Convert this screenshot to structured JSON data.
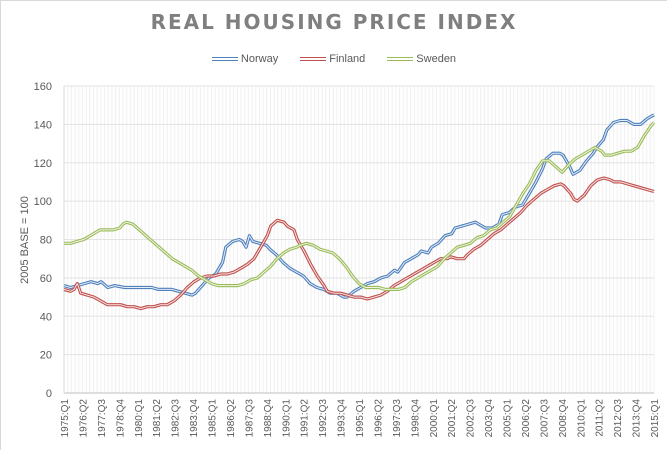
{
  "chart_data": {
    "type": "line",
    "title": "REAL HOUSING PRICE INDEX",
    "xlabel": "",
    "ylabel": "2005 BASE = 100",
    "ylim": [
      0,
      160
    ],
    "yticks": [
      0,
      20,
      40,
      60,
      80,
      100,
      120,
      140,
      160
    ],
    "grid": true,
    "legend_position": "top",
    "x_start": "1975:Q1",
    "x_end": "2015:Q1",
    "x_tick_every": 5,
    "x_tick_labels": [
      "1975:Q1",
      "1976:Q2",
      "1977:Q3",
      "1978:Q4",
      "1980:Q1",
      "1981:Q2",
      "1982:Q3",
      "1983:Q4",
      "1985:Q1",
      "1986:Q2",
      "1987:Q3",
      "1988:Q4",
      "1990:Q1",
      "1991:Q2",
      "1992:Q3",
      "1993:Q4",
      "1995:Q1",
      "1996:Q2",
      "1997:Q3",
      "1998:Q4",
      "2000:Q1",
      "2001:Q2",
      "2002:Q3",
      "2003:Q4",
      "2005:Q1",
      "2006:Q2",
      "2007:Q3",
      "2008:Q4",
      "2010:Q1",
      "2011:Q2",
      "2012:Q3",
      "2013:Q4",
      "2015:Q1"
    ],
    "series": [
      {
        "name": "Norway",
        "color": "#4f81bd",
        "keypoints": [
          [
            0,
            56
          ],
          [
            2,
            55
          ],
          [
            4,
            56
          ],
          [
            6,
            57
          ],
          [
            8,
            58
          ],
          [
            10,
            57
          ],
          [
            11,
            58
          ],
          [
            13,
            55
          ],
          [
            15,
            56
          ],
          [
            18,
            55
          ],
          [
            22,
            55
          ],
          [
            26,
            55
          ],
          [
            28,
            54
          ],
          [
            32,
            54
          ],
          [
            34,
            53
          ],
          [
            36,
            52
          ],
          [
            38,
            51
          ],
          [
            39,
            52
          ],
          [
            41,
            56
          ],
          [
            43,
            60
          ],
          [
            45,
            62
          ],
          [
            47,
            68
          ],
          [
            48,
            76
          ],
          [
            50,
            79
          ],
          [
            52,
            80
          ],
          [
            53,
            79
          ],
          [
            54,
            76
          ],
          [
            55,
            82
          ],
          [
            56,
            79
          ],
          [
            58,
            78
          ],
          [
            60,
            77
          ],
          [
            61,
            75
          ],
          [
            63,
            72
          ],
          [
            65,
            68
          ],
          [
            67,
            65
          ],
          [
            69,
            63
          ],
          [
            71,
            61
          ],
          [
            73,
            57
          ],
          [
            75,
            55
          ],
          [
            77,
            54
          ],
          [
            79,
            52
          ],
          [
            81,
            52
          ],
          [
            83,
            50
          ],
          [
            84,
            50
          ],
          [
            86,
            53
          ],
          [
            88,
            55
          ],
          [
            90,
            57
          ],
          [
            92,
            58
          ],
          [
            94,
            60
          ],
          [
            96,
            61
          ],
          [
            98,
            64
          ],
          [
            99,
            63
          ],
          [
            101,
            68
          ],
          [
            103,
            70
          ],
          [
            105,
            72
          ],
          [
            106,
            74
          ],
          [
            108,
            73
          ],
          [
            109,
            76
          ],
          [
            111,
            78
          ],
          [
            113,
            82
          ],
          [
            115,
            83
          ],
          [
            116,
            86
          ],
          [
            118,
            87
          ],
          [
            120,
            88
          ],
          [
            122,
            89
          ],
          [
            123,
            88
          ],
          [
            125,
            86
          ],
          [
            127,
            86
          ],
          [
            129,
            88
          ],
          [
            130,
            93
          ],
          [
            132,
            94
          ],
          [
            134,
            97
          ],
          [
            136,
            98
          ],
          [
            138,
            104
          ],
          [
            140,
            110
          ],
          [
            142,
            117
          ],
          [
            143,
            122
          ],
          [
            145,
            125
          ],
          [
            147,
            125
          ],
          [
            148,
            124
          ],
          [
            150,
            118
          ],
          [
            151,
            114
          ],
          [
            153,
            116
          ],
          [
            155,
            121
          ],
          [
            157,
            125
          ],
          [
            158,
            128
          ],
          [
            160,
            132
          ],
          [
            161,
            137
          ],
          [
            163,
            141
          ],
          [
            165,
            142
          ],
          [
            167,
            142
          ],
          [
            169,
            140
          ],
          [
            171,
            140
          ],
          [
            173,
            143
          ],
          [
            175,
            145
          ]
        ]
      },
      {
        "name": "Finland",
        "color": "#c0504d",
        "keypoints": [
          [
            0,
            54
          ],
          [
            2,
            53
          ],
          [
            3,
            54
          ],
          [
            4,
            57
          ],
          [
            5,
            52
          ],
          [
            7,
            51
          ],
          [
            9,
            50
          ],
          [
            11,
            48
          ],
          [
            13,
            46
          ],
          [
            15,
            46
          ],
          [
            17,
            46
          ],
          [
            19,
            45
          ],
          [
            21,
            45
          ],
          [
            23,
            44
          ],
          [
            25,
            45
          ],
          [
            27,
            45
          ],
          [
            29,
            46
          ],
          [
            31,
            46
          ],
          [
            33,
            48
          ],
          [
            35,
            51
          ],
          [
            37,
            55
          ],
          [
            39,
            58
          ],
          [
            41,
            60
          ],
          [
            43,
            61
          ],
          [
            45,
            61
          ],
          [
            47,
            62
          ],
          [
            49,
            62
          ],
          [
            51,
            63
          ],
          [
            53,
            65
          ],
          [
            55,
            67
          ],
          [
            57,
            70
          ],
          [
            59,
            76
          ],
          [
            61,
            82
          ],
          [
            62,
            87
          ],
          [
            64,
            90
          ],
          [
            66,
            89
          ],
          [
            67,
            87
          ],
          [
            69,
            85
          ],
          [
            70,
            80
          ],
          [
            72,
            74
          ],
          [
            74,
            67
          ],
          [
            76,
            61
          ],
          [
            78,
            56
          ],
          [
            79,
            53
          ],
          [
            81,
            52
          ],
          [
            83,
            52
          ],
          [
            85,
            51
          ],
          [
            87,
            50
          ],
          [
            89,
            50
          ],
          [
            91,
            49
          ],
          [
            93,
            50
          ],
          [
            95,
            51
          ],
          [
            97,
            53
          ],
          [
            99,
            56
          ],
          [
            101,
            58
          ],
          [
            103,
            60
          ],
          [
            105,
            62
          ],
          [
            107,
            64
          ],
          [
            109,
            66
          ],
          [
            111,
            68
          ],
          [
            113,
            70
          ],
          [
            115,
            70
          ],
          [
            116,
            71
          ],
          [
            118,
            70
          ],
          [
            120,
            70
          ],
          [
            121,
            72
          ],
          [
            123,
            75
          ],
          [
            125,
            77
          ],
          [
            127,
            80
          ],
          [
            129,
            83
          ],
          [
            131,
            85
          ],
          [
            133,
            88
          ],
          [
            135,
            91
          ],
          [
            137,
            94
          ],
          [
            139,
            98
          ],
          [
            141,
            101
          ],
          [
            143,
            104
          ],
          [
            145,
            106
          ],
          [
            147,
            108
          ],
          [
            149,
            109
          ],
          [
            150,
            108
          ],
          [
            152,
            104
          ],
          [
            153,
            101
          ],
          [
            154,
            100
          ],
          [
            156,
            103
          ],
          [
            158,
            108
          ],
          [
            160,
            111
          ],
          [
            162,
            112
          ],
          [
            164,
            111
          ],
          [
            165,
            110
          ],
          [
            167,
            110
          ],
          [
            169,
            109
          ],
          [
            171,
            108
          ],
          [
            173,
            107
          ],
          [
            175,
            106
          ],
          [
            177,
            105
          ]
        ]
      },
      {
        "name": "Sweden",
        "color": "#9bbb59",
        "keypoints": [
          [
            0,
            78
          ],
          [
            2,
            78
          ],
          [
            4,
            79
          ],
          [
            6,
            80
          ],
          [
            8,
            82
          ],
          [
            10,
            84
          ],
          [
            11,
            85
          ],
          [
            13,
            85
          ],
          [
            15,
            85
          ],
          [
            17,
            86
          ],
          [
            18,
            88
          ],
          [
            19,
            89
          ],
          [
            21,
            88
          ],
          [
            23,
            85
          ],
          [
            25,
            82
          ],
          [
            27,
            79
          ],
          [
            29,
            76
          ],
          [
            31,
            73
          ],
          [
            33,
            70
          ],
          [
            35,
            68
          ],
          [
            37,
            66
          ],
          [
            39,
            64
          ],
          [
            41,
            61
          ],
          [
            43,
            59
          ],
          [
            45,
            57
          ],
          [
            47,
            56
          ],
          [
            49,
            56
          ],
          [
            51,
            56
          ],
          [
            53,
            56
          ],
          [
            55,
            57
          ],
          [
            57,
            59
          ],
          [
            59,
            60
          ],
          [
            61,
            63
          ],
          [
            63,
            66
          ],
          [
            65,
            70
          ],
          [
            67,
            73
          ],
          [
            69,
            75
          ],
          [
            71,
            76
          ],
          [
            72,
            77
          ],
          [
            74,
            78
          ],
          [
            76,
            77
          ],
          [
            78,
            75
          ],
          [
            80,
            74
          ],
          [
            82,
            73
          ],
          [
            84,
            70
          ],
          [
            86,
            66
          ],
          [
            88,
            61
          ],
          [
            90,
            57
          ],
          [
            92,
            55
          ],
          [
            94,
            55
          ],
          [
            96,
            55
          ],
          [
            98,
            54
          ],
          [
            100,
            54
          ],
          [
            102,
            54
          ],
          [
            104,
            55
          ],
          [
            106,
            58
          ],
          [
            108,
            60
          ],
          [
            110,
            62
          ],
          [
            112,
            64
          ],
          [
            114,
            66
          ],
          [
            116,
            70
          ],
          [
            118,
            73
          ],
          [
            120,
            76
          ],
          [
            122,
            77
          ],
          [
            124,
            78
          ],
          [
            126,
            81
          ],
          [
            128,
            82
          ],
          [
            130,
            85
          ],
          [
            132,
            86
          ],
          [
            134,
            89
          ],
          [
            136,
            92
          ],
          [
            138,
            98
          ],
          [
            140,
            104
          ],
          [
            142,
            109
          ],
          [
            144,
            116
          ],
          [
            146,
            121
          ],
          [
            148,
            121
          ],
          [
            150,
            118
          ],
          [
            152,
            115
          ],
          [
            154,
            119
          ],
          [
            156,
            122
          ],
          [
            158,
            124
          ],
          [
            160,
            126
          ],
          [
            162,
            128
          ],
          [
            164,
            126
          ],
          [
            165,
            124
          ],
          [
            167,
            124
          ],
          [
            169,
            125
          ],
          [
            171,
            126
          ],
          [
            173,
            126
          ],
          [
            175,
            128
          ],
          [
            177,
            134
          ],
          [
            179,
            139
          ],
          [
            180,
            141
          ]
        ]
      }
    ]
  }
}
